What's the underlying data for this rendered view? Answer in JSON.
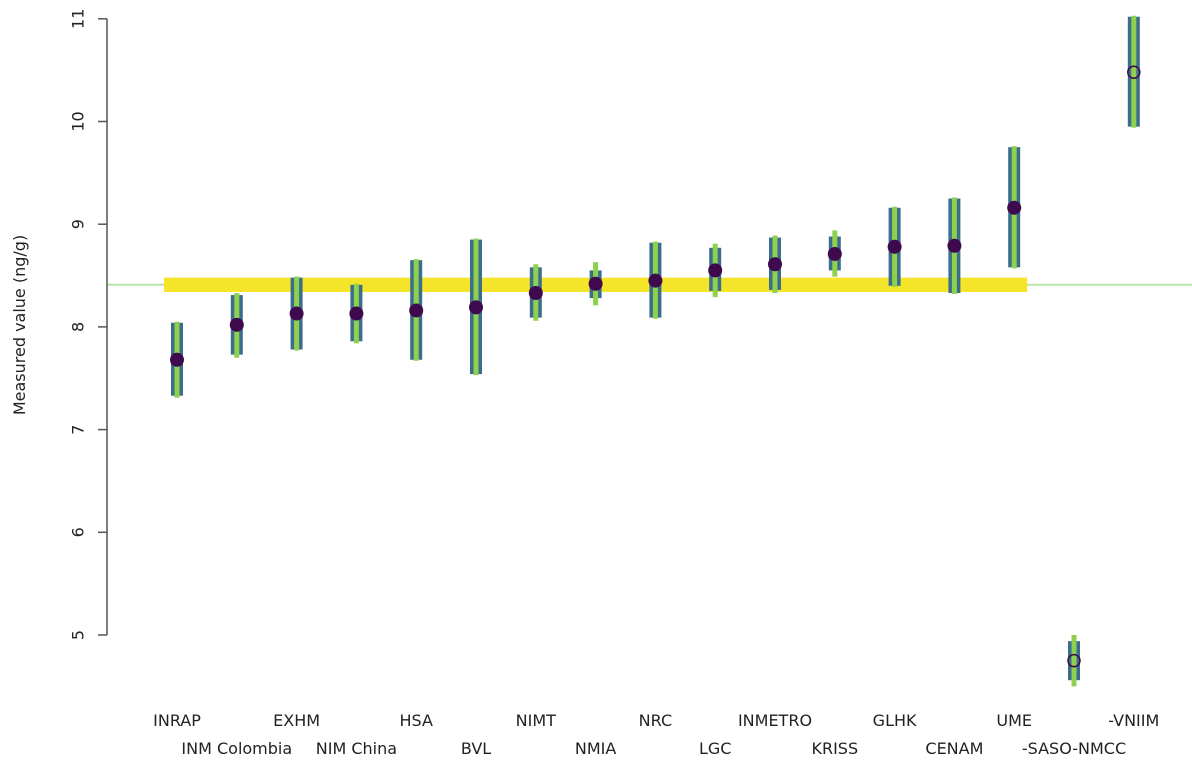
{
  "chart_data": {
    "type": "scatter",
    "title": "",
    "xlabel": "",
    "ylabel": "Measured value (ng/g)",
    "ylim": [
      4.5,
      11
    ],
    "yticks": [
      "5",
      "6",
      "7",
      "8",
      "9",
      "10",
      "11"
    ],
    "grid": false,
    "legend": "none",
    "consensus": {
      "value": 8.41,
      "band": [
        8.34,
        8.48
      ]
    },
    "colors": {
      "band": "#f5e52a",
      "consensus_line": "#b7e4a8",
      "bar_outer": "#3a6e8c",
      "bar_inner": "#8fd14f",
      "point": "#3f0a4d",
      "axis": "#555555"
    },
    "labs": [
      {
        "name": "INRAP",
        "value": 7.68,
        "u_outer": [
          7.33,
          8.04
        ],
        "u_inner": [
          7.31,
          8.05
        ],
        "excluded": false
      },
      {
        "name": "INM Colombia",
        "value": 8.02,
        "u_outer": [
          7.73,
          8.31
        ],
        "u_inner": [
          7.7,
          8.33
        ],
        "excluded": false
      },
      {
        "name": "EXHM",
        "value": 8.13,
        "u_outer": [
          7.78,
          8.48
        ],
        "u_inner": [
          7.77,
          8.49
        ],
        "excluded": false
      },
      {
        "name": "NIM China",
        "value": 8.13,
        "u_outer": [
          7.86,
          8.41
        ],
        "u_inner": [
          7.84,
          8.42
        ],
        "excluded": false
      },
      {
        "name": "HSA",
        "value": 8.16,
        "u_outer": [
          7.68,
          8.65
        ],
        "u_inner": [
          7.67,
          8.66
        ],
        "excluded": false
      },
      {
        "name": "BVL",
        "value": 8.19,
        "u_outer": [
          7.54,
          8.85
        ],
        "u_inner": [
          7.53,
          8.86
        ],
        "excluded": false
      },
      {
        "name": "NIMT",
        "value": 8.33,
        "u_outer": [
          8.09,
          8.58
        ],
        "u_inner": [
          8.06,
          8.61
        ],
        "excluded": false
      },
      {
        "name": "NMIA",
        "value": 8.42,
        "u_outer": [
          8.28,
          8.55
        ],
        "u_inner": [
          8.21,
          8.63
        ],
        "excluded": false
      },
      {
        "name": "NRC",
        "value": 8.45,
        "u_outer": [
          8.09,
          8.82
        ],
        "u_inner": [
          8.08,
          8.83
        ],
        "excluded": false
      },
      {
        "name": "LGC",
        "value": 8.55,
        "u_outer": [
          8.35,
          8.77
        ],
        "u_inner": [
          8.29,
          8.81
        ],
        "excluded": false
      },
      {
        "name": "INMETRO",
        "value": 8.61,
        "u_outer": [
          8.36,
          8.87
        ],
        "u_inner": [
          8.33,
          8.89
        ],
        "excluded": false
      },
      {
        "name": "KRISS",
        "value": 8.71,
        "u_outer": [
          8.55,
          8.88
        ],
        "u_inner": [
          8.49,
          8.94
        ],
        "excluded": false
      },
      {
        "name": "GLHK",
        "value": 8.78,
        "u_outer": [
          8.4,
          9.16
        ],
        "u_inner": [
          8.39,
          9.17
        ],
        "excluded": false
      },
      {
        "name": "CENAM",
        "value": 8.79,
        "u_outer": [
          8.33,
          9.25
        ],
        "u_inner": [
          8.32,
          9.26
        ],
        "excluded": false
      },
      {
        "name": "UME",
        "value": 9.16,
        "u_outer": [
          8.58,
          9.75
        ],
        "u_inner": [
          8.57,
          9.76
        ],
        "excluded": false
      },
      {
        "name": "-SASO-NMCC",
        "value": 4.75,
        "u_outer": [
          4.56,
          4.94
        ],
        "u_inner": [
          4.5,
          5.0
        ],
        "excluded": true
      },
      {
        "name": "-VNIIM",
        "value": 10.48,
        "u_outer": [
          9.95,
          11.02
        ],
        "u_inner": [
          9.94,
          11.03
        ],
        "excluded": true
      }
    ]
  }
}
